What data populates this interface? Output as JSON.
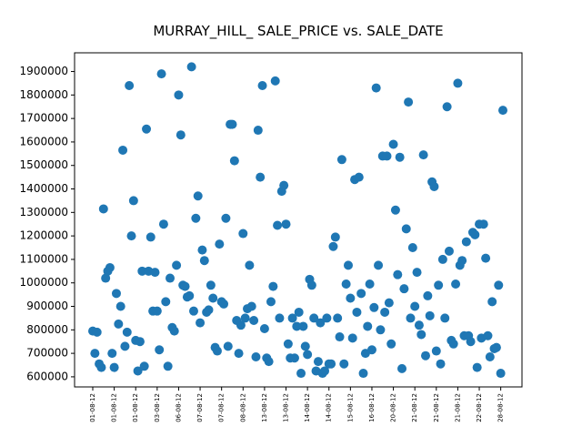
{
  "chart_data": {
    "type": "scatter",
    "title": "MURRAY_HILL_ SALE_PRICE vs. SALE_DATE",
    "categories": [
      "01-08-12",
      null,
      null,
      null,
      null,
      null,
      null,
      null,
      null,
      null,
      "01-08-12",
      null,
      null,
      null,
      null,
      null,
      null,
      null,
      null,
      null,
      "01-08-12",
      null,
      null,
      null,
      null,
      null,
      null,
      null,
      null,
      null,
      "03-08-12",
      null,
      null,
      null,
      null,
      null,
      null,
      null,
      null,
      null,
      "06-08-12",
      null,
      null,
      null,
      null,
      null,
      null,
      null,
      null,
      null,
      "07-08-12",
      null,
      null,
      null,
      null,
      null,
      null,
      null,
      null,
      null,
      "07-08-12",
      null,
      null,
      null,
      null,
      null,
      null,
      null,
      null,
      null,
      "08-08-12",
      null,
      null,
      null,
      null,
      null,
      null,
      null,
      null,
      null,
      "13-08-12",
      null,
      null,
      null,
      null,
      null,
      null,
      null,
      null,
      null,
      "13-08-12",
      null,
      null,
      null,
      null,
      null,
      null,
      null,
      null,
      null,
      "14-08-12",
      null,
      null,
      null,
      null,
      null,
      null,
      null,
      null,
      null,
      "14-08-12",
      null,
      null,
      null,
      null,
      null,
      null,
      null,
      null,
      null,
      "15-08-12",
      null,
      null,
      null,
      null,
      null,
      null,
      null,
      null,
      null,
      "16-08-12",
      null,
      null,
      null,
      null,
      null,
      null,
      null,
      null,
      null,
      "20-08-12",
      null,
      null,
      null,
      null,
      null,
      null,
      null,
      null,
      null,
      "21-08-12",
      null,
      null,
      null,
      null,
      null,
      null,
      null,
      null,
      null,
      "21-08-12",
      null,
      null,
      null,
      null,
      null,
      null,
      null,
      null,
      null,
      "21-08-12",
      null,
      null,
      null,
      null,
      null,
      null,
      null,
      null,
      null,
      "22-08-12",
      null,
      null,
      null,
      null,
      null,
      null,
      null,
      null,
      null,
      "28-08-12",
      null
    ],
    "values": [
      795000,
      700000,
      790000,
      655000,
      640000,
      1315000,
      1020000,
      1050000,
      1065000,
      700000,
      640000,
      955000,
      825000,
      900000,
      1565000,
      730000,
      790000,
      1840000,
      1200000,
      1350000,
      755000,
      625000,
      750000,
      1050000,
      645000,
      1655000,
      1050000,
      1195000,
      880000,
      1045000,
      880000,
      715000,
      1890000,
      1250000,
      920000,
      645000,
      1020000,
      810000,
      795000,
      1075000,
      1800000,
      1630000,
      990000,
      985000,
      940000,
      945000,
      1920000,
      880000,
      1275000,
      1370000,
      830000,
      1140000,
      1095000,
      875000,
      885000,
      990000,
      935000,
      725000,
      710000,
      1165000,
      920000,
      910000,
      1275000,
      730000,
      1675000,
      1675000,
      1520000,
      840000,
      700000,
      820000,
      1210000,
      850000,
      890000,
      1075000,
      900000,
      840000,
      685000,
      1650000,
      1450000,
      1840000,
      805000,
      680000,
      665000,
      920000,
      985000,
      1860000,
      1245000,
      850000,
      1390000,
      1415000,
      1250000,
      740000,
      680000,
      850000,
      680000,
      815000,
      875000,
      615000,
      815000,
      730000,
      695000,
      1015000,
      990000,
      850000,
      625000,
      665000,
      830000,
      615000,
      625000,
      850000,
      655000,
      655000,
      1155000,
      1195000,
      850000,
      770000,
      1525000,
      655000,
      995000,
      1075000,
      935000,
      765000,
      1440000,
      875000,
      1450000,
      955000,
      615000,
      700000,
      815000,
      995000,
      715000,
      895000,
      1830000,
      1075000,
      800000,
      1540000,
      875000,
      1540000,
      915000,
      740000,
      1590000,
      1310000,
      1035000,
      1535000,
      635000,
      975000,
      1230000,
      1770000,
      850000,
      1150000,
      900000,
      1045000,
      820000,
      780000,
      1545000,
      690000,
      945000,
      860000,
      1430000,
      1410000,
      710000,
      990000,
      655000,
      1100000,
      850000,
      1750000,
      1135000,
      755000,
      740000,
      995000,
      1850000,
      1075000,
      1095000,
      775000,
      1175000,
      775000,
      750000,
      1215000,
      1205000,
      640000,
      1250000,
      765000,
      1250000,
      1105000,
      775000,
      685000,
      920000,
      720000,
      725000,
      990000,
      615000,
      1735000
    ],
    "color": "#1f77b4",
    "ylim": [
      557000,
      2030000
    ],
    "yticks": [
      600000,
      700000,
      800000,
      900000,
      1000000,
      1100000,
      1200000,
      1300000,
      1400000,
      1500000,
      1600000,
      1700000,
      1800000,
      1900000
    ]
  }
}
